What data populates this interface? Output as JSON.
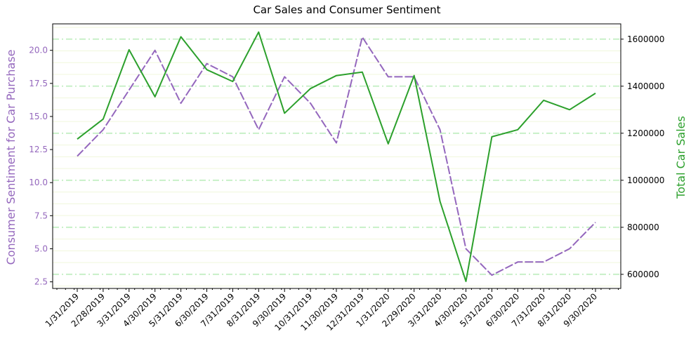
{
  "chart_data": {
    "type": "line",
    "title": "Car Sales and Consumer Sentiment",
    "xlabel": "",
    "categories": [
      "1/31/2019",
      "2/28/2019",
      "3/31/2019",
      "4/30/2019",
      "5/31/2019",
      "6/30/2019",
      "7/31/2019",
      "8/31/2019",
      "9/30/2019",
      "10/31/2019",
      "11/30/2019",
      "12/31/2019",
      "1/31/2020",
      "2/29/2020",
      "3/31/2020",
      "4/30/2020",
      "5/31/2020",
      "6/30/2020",
      "7/31/2020",
      "8/31/2020",
      "9/30/2020"
    ],
    "y_left": {
      "label": "Consumer Sentiment for Car Purchase",
      "ylim": [
        2.0,
        22.0
      ],
      "ticks": [
        "2.5",
        "5.0",
        "7.5",
        "10.0",
        "12.5",
        "15.0",
        "17.5",
        "20.0"
      ],
      "color": "#9467bd"
    },
    "y_right": {
      "label": "Total Car Sales",
      "ylim": [
        540000,
        1665000
      ],
      "ticks": [
        "600000",
        "800000",
        "1000000",
        "1200000",
        "1400000",
        "1600000"
      ],
      "color": "#2ca02c"
    },
    "series": [
      {
        "axis": "left",
        "style": "dashed",
        "color": "#9467bd",
        "values": [
          12,
          14,
          17,
          20,
          16,
          19,
          18,
          14,
          18,
          16,
          13,
          21,
          18,
          18,
          14,
          5,
          3,
          4,
          4,
          5,
          7
        ]
      },
      {
        "axis": "right",
        "style": "solid",
        "color": "#2ca02c",
        "values": [
          1175000,
          1260000,
          1555000,
          1355000,
          1610000,
          1470000,
          1420000,
          1630000,
          1285000,
          1390000,
          1445000,
          1460000,
          1155000,
          1445000,
          910000,
          570000,
          1185000,
          1215000,
          1340000,
          1300000,
          1370000
        ]
      }
    ],
    "grid": {
      "major_color": "#c8f0c8",
      "minor_color": "#f0f7dc"
    },
    "legend": "none"
  }
}
